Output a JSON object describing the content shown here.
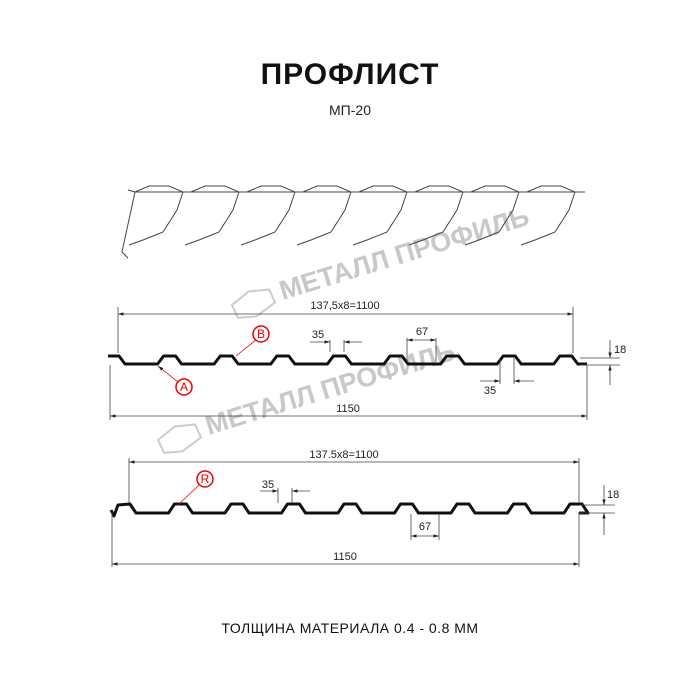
{
  "title": "ПРОФЛИСТ",
  "subtitle": "МП-20",
  "footer": "ТОЛЩИНА МАТЕРИАЛА 0.4 - 0.8 ММ",
  "watermark": "МЕТАЛЛ ПРОФИЛЬ",
  "colors": {
    "profile": "#111111",
    "marker": "#e00000",
    "watermark": "#c8c8c8"
  },
  "profile_a": {
    "pitch_label": "137,5x8=1100",
    "width_label": "1150",
    "top_width_label": "35",
    "bottom_width_label": "35",
    "trough_label": "67",
    "height_label": "18",
    "marker_a": "A",
    "marker_b": "B"
  },
  "profile_b": {
    "pitch_label": "137.5x8=1100",
    "width_label": "1150",
    "top_width_label": "35",
    "trough_label": "67",
    "height_label": "18",
    "marker_r": "R"
  }
}
